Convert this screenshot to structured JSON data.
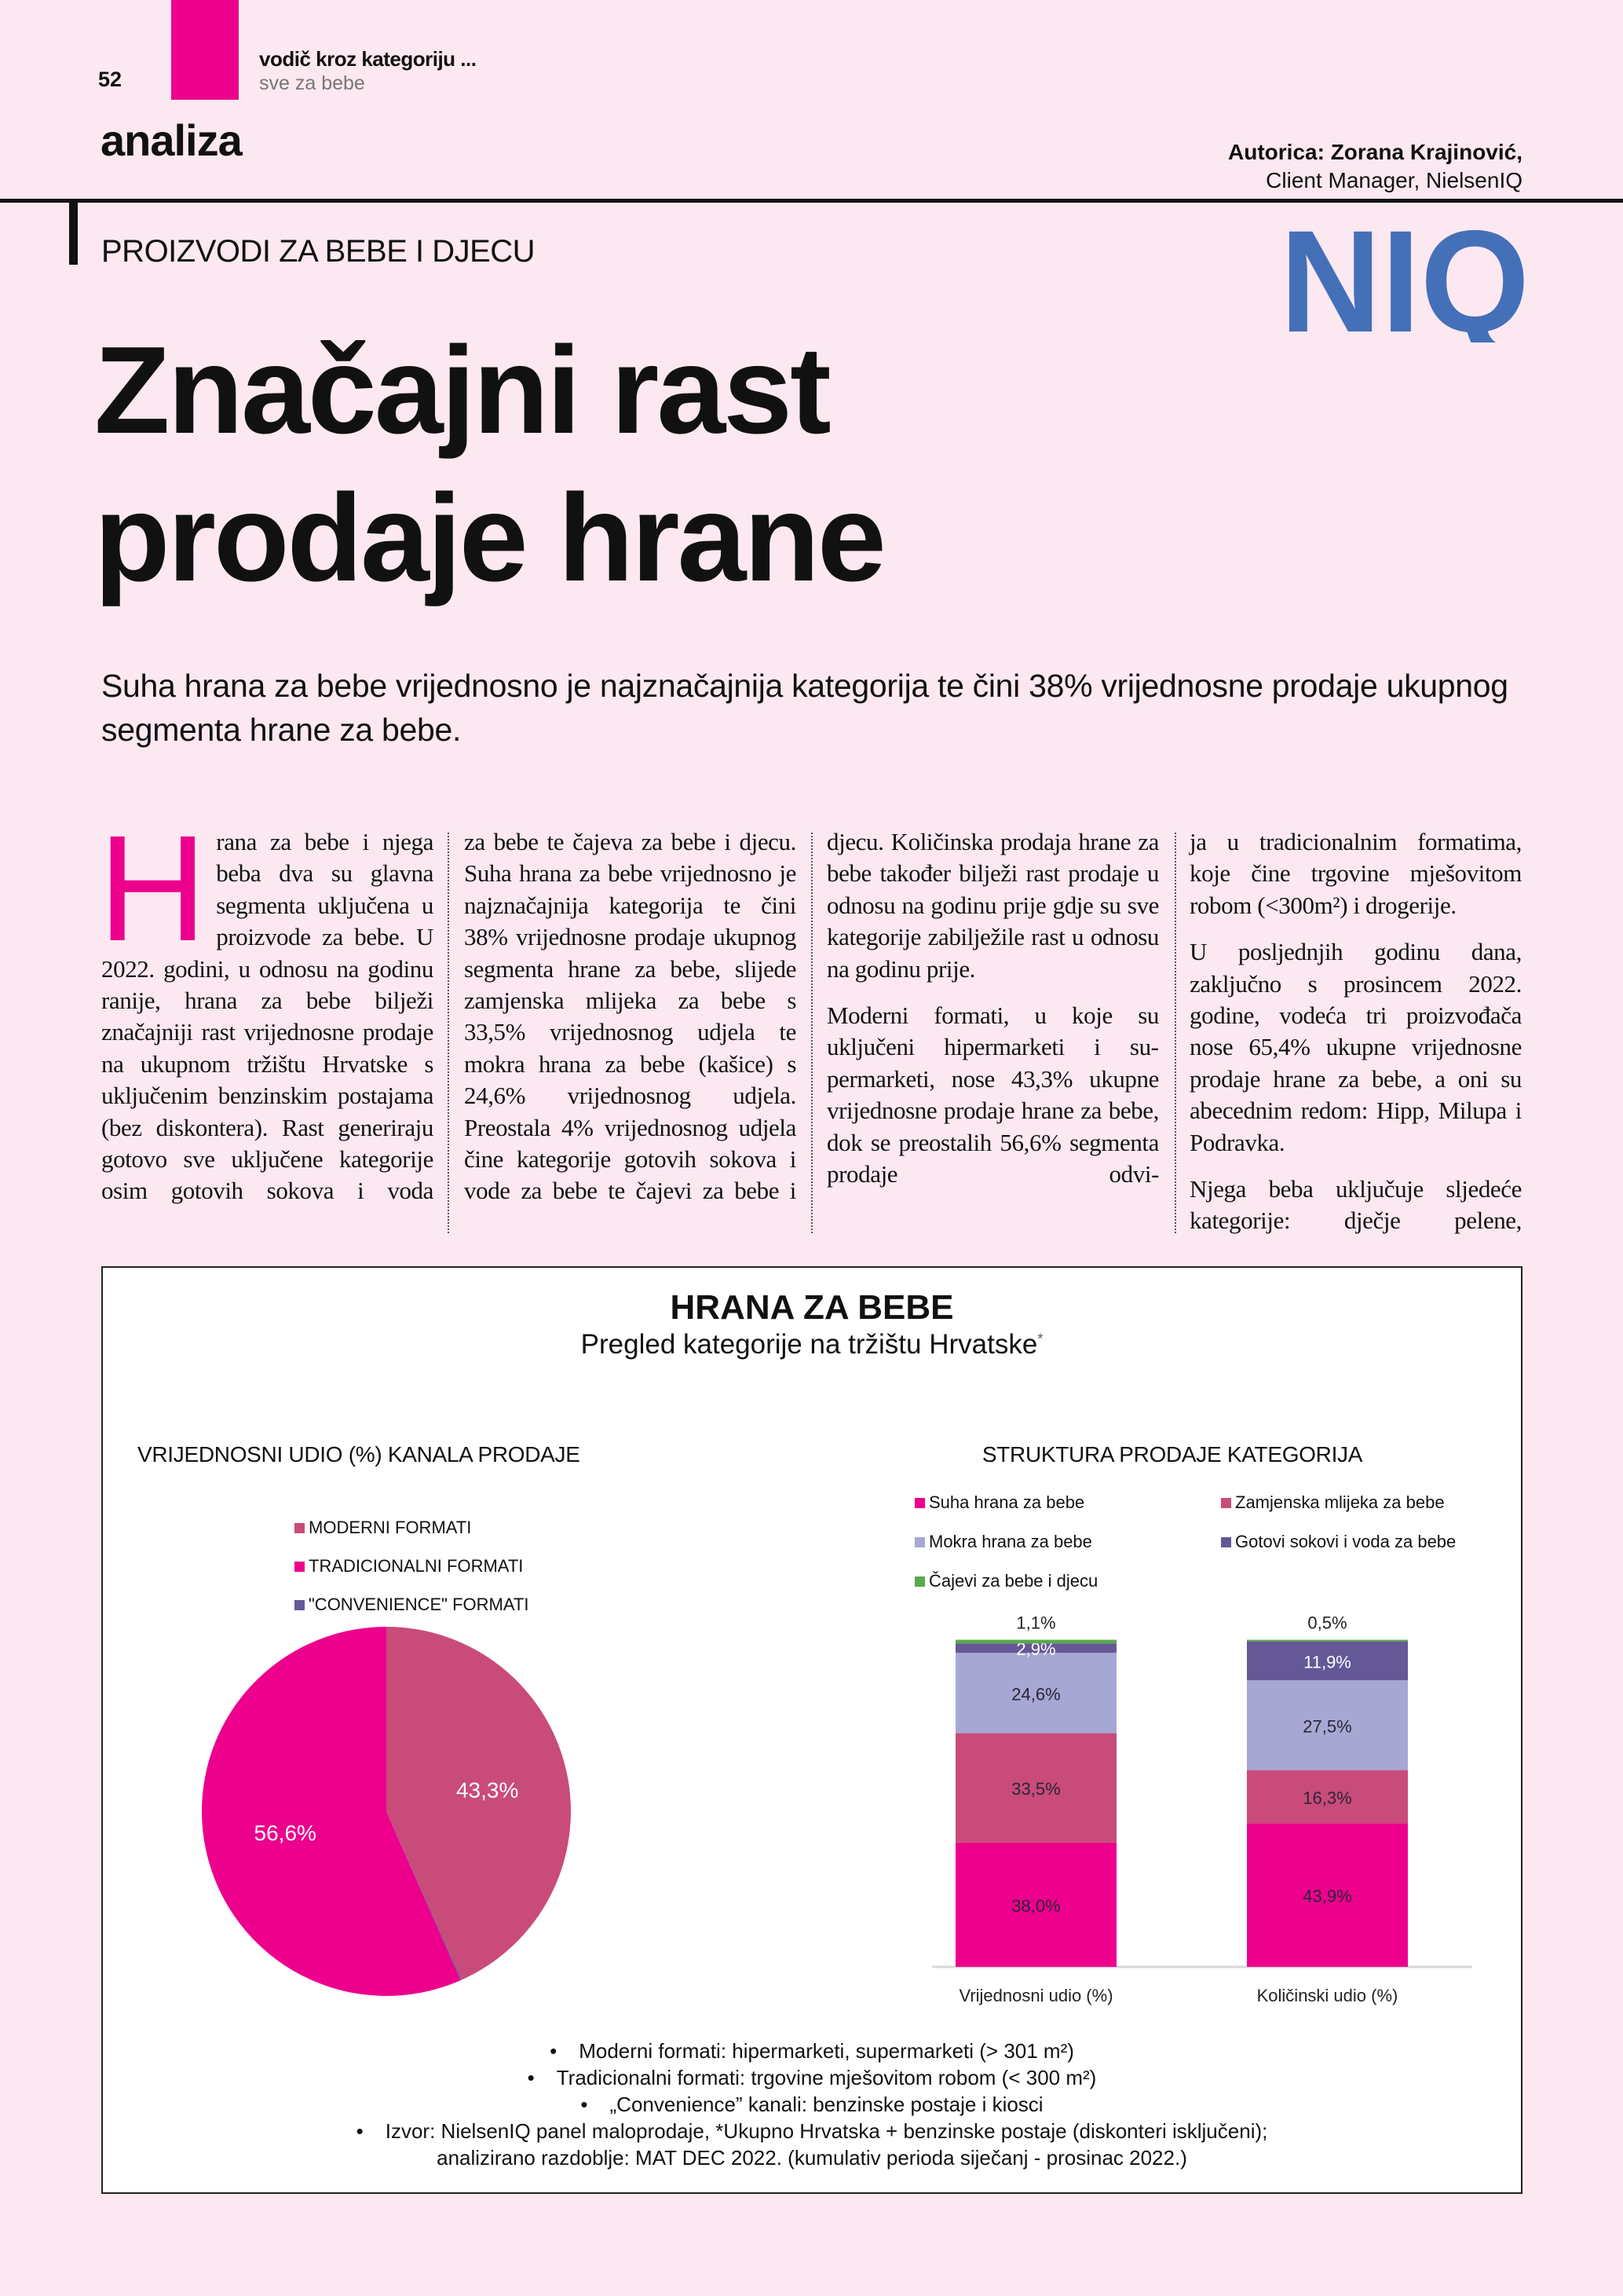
{
  "header": {
    "page_number": "52",
    "kicker": "vodič kroz kategoriju ...",
    "kicker_sub": "sve za bebe",
    "section": "analiza",
    "author": "Autorica: Zorana Krajinović,",
    "author_role": "Client Manager, NielsenIQ",
    "category": "PROIZVODI ZA BEBE I DJECU",
    "logo_text": "NIQ",
    "accent_color": "#ec008c",
    "logo_color": "#4470b8"
  },
  "article": {
    "title_line1": "Značajni rast",
    "title_line2": "prodaje hrane",
    "lead": "Suha hrana za bebe vrijednosno je najznačajnija kategorija te čini 38% vrijednosne prodaje ukupnog segmenta hrane za bebe.",
    "drop_cap": "H",
    "col1": [
      "rana za bebe i njega beba dva su glavna segmenta uključena u proizvode za bebe. U 2022. godini, u odnosu na godinu ranije, hrana za bebe bilježi značajniji rast vrijednosne prodaje na ukupnom tržištu Hrvatske s uključenim benzinskim postajama (bez diskontera). Rast generiraju gotovo sve uključene kategorije osim gotovih sokova i voda"
    ],
    "col2": [
      "za bebe te čajeva za bebe i dje­cu. Suha hrana za bebe vrijednosno je najznačajnija kategorija te čini 38% vrijednosne prodaje ukupnog segmenta hrane za bebe, slijede zamjenska mlijeka za bebe s 33,5% vrijednosnog udjela te mokra hrana za bebe (kašice) s 24,6% vrijednosnog udjela. Preostala 4% vrijednosnog udjela čine kategorije gotovih sokova i vode za bebe te čajevi za bebe i"
    ],
    "col3": [
      "djecu. Količinska prodaja hra­ne za bebe također bilježi rast prodaje u odnosu na godinu prije gdje su sve kategorije za­bilježile rast u odnosu na go­dinu prije.",
      "Moderni formati, u koje su uključeni hipermarketi i su­permarketi, nose 43,3% ukup­ne vrijednosne prodaje hrane za bebe, dok se preostalih 56,6% segmenta prodaje odvi-"
    ],
    "col4": [
      "ja u tradicionalnim formatima, koje čine trgovine mješovitom robom (<300m²) i drogerije.",
      "U posljednjih godinu dana, zaključno s prosincem 2022. godine, vodeća tri proizvođa­ča nose 65,4% ukupne vrijed­nosne prodaje hrane za bebe, a oni su abecednim redom: Hipp, Milupa i Podravka.",
      "Njega beba uključuje sljede­će kategorije: dječje pelene,"
    ]
  },
  "infographic": {
    "title": "HRANA ZA BEBE",
    "subtitle": "Pregled kategorije na tržištu Hrvatske",
    "subtitle_mark": "*",
    "notes": [
      "Moderni formati: hipermarketi, supermarketi (> 301 m²)",
      "Tradicionalni formati: trgovine mješovitom robom (< 300 m²)",
      "„Convenience” kanali: benzinske postaje i kiosci",
      "Izvor: NielsenIQ panel maloprodaje, *Ukupno Hrvatska + benzinske postaje (diskonteri isključeni);",
      "analizirano razdoblje: MAT DEC 2022. (kumulativ perioda siječanj - prosinac 2022.)"
    ]
  },
  "chart_data": [
    {
      "type": "pie",
      "title": "VRIJEDNOSNI UDIO (%) KANALA PRODAJE",
      "legend_position": "top",
      "slices": [
        {
          "name": "MODERNI FORMATI",
          "value": 43.3,
          "label": "43,3%",
          "color": "#c94b7a"
        },
        {
          "name": "\"CONVENIENCE\" FORMATI",
          "value": 0.1,
          "label": "",
          "color": "#645896"
        },
        {
          "name": "TRADICIONALNI FORMATI",
          "value": 56.6,
          "label": "56,6%",
          "color": "#ec008c"
        }
      ],
      "legend_order": [
        0,
        2,
        1
      ]
    },
    {
      "type": "bar",
      "stacked": true,
      "title": "STRUKTURA PRODAJE KATEGORIJA",
      "legend_position": "top",
      "categories": [
        "Vrijednosni udio (%)",
        "Količinski udio (%)"
      ],
      "ylim": [
        0,
        100
      ],
      "series": [
        {
          "name": "Suha hrana za bebe",
          "values": [
            38.0,
            43.9
          ],
          "labels": [
            "38,0%",
            "43,9%"
          ],
          "color": "#ec008c"
        },
        {
          "name": "Zamjenska mlijeka za bebe",
          "values": [
            33.5,
            16.3
          ],
          "labels": [
            "33,5%",
            "16,3%"
          ],
          "color": "#c94b7a"
        },
        {
          "name": "Mokra hrana za bebe",
          "values": [
            24.6,
            27.5
          ],
          "labels": [
            "24,6%",
            "27,5%"
          ],
          "color": "#a7a7d3"
        },
        {
          "name": "Gotovi sokovi i voda za bebe",
          "values": [
            2.9,
            11.9
          ],
          "labels": [
            "2,9%",
            "11,9%"
          ],
          "color": "#645896"
        },
        {
          "name": "Čajevi za bebe i djecu",
          "values": [
            1.1,
            0.5
          ],
          "labels": [
            "1,1%",
            "0,5%"
          ],
          "color": "#5aa94a"
        }
      ]
    }
  ]
}
